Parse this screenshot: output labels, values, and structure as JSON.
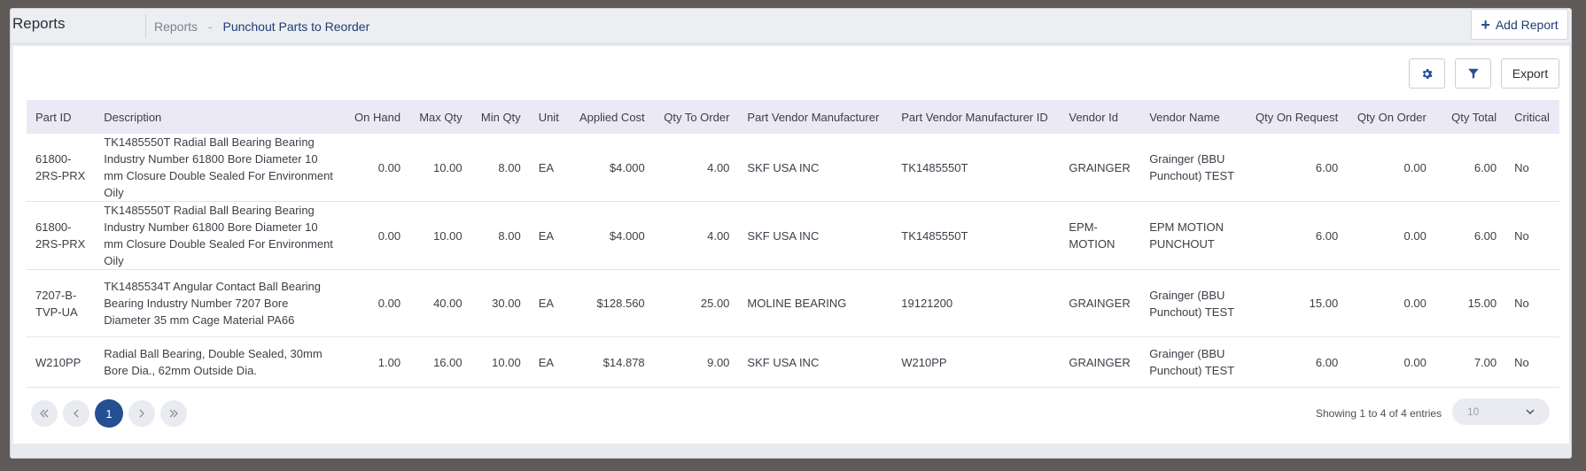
{
  "header": {
    "app_title": "Reports",
    "breadcrumb_root": "Reports",
    "breadcrumb_separator": "-",
    "breadcrumb_current": "Punchout Parts to Reorder",
    "add_report_label": "Add Report",
    "add_report_icon": "plus-icon"
  },
  "toolbar": {
    "settings_icon": "gear-icon",
    "filter_icon": "filter-icon",
    "export_label": "Export"
  },
  "table": {
    "columns": [
      "Part ID",
      "Description",
      "On Hand",
      "Max Qty",
      "Min Qty",
      "Unit",
      "Applied Cost",
      "Qty To Order",
      "Part Vendor Manufacturer",
      "Part Vendor Manufacturer ID",
      "Vendor Id",
      "Vendor Name",
      "Qty On Request",
      "Qty On Order",
      "Qty Total",
      "Critical"
    ],
    "rows": [
      [
        "61800-2RS-PRX",
        "TK1485550T Radial Ball Bearing Bearing Industry Number 61800 Bore Diameter 10 mm Closure Double Sealed For Environment Oily",
        "0.00",
        "10.00",
        "8.00",
        "EA",
        "$4.000",
        "4.00",
        "SKF USA INC",
        "TK1485550T",
        "GRAINGER",
        "Grainger (BBU Punchout) TEST",
        "6.00",
        "0.00",
        "6.00",
        "No"
      ],
      [
        "61800-2RS-PRX",
        "TK1485550T Radial Ball Bearing Bearing Industry Number 61800 Bore Diameter 10 mm Closure Double Sealed For Environment Oily",
        "0.00",
        "10.00",
        "8.00",
        "EA",
        "$4.000",
        "4.00",
        "SKF USA INC",
        "TK1485550T",
        "EPM-MOTION",
        "EPM MOTION PUNCHOUT",
        "6.00",
        "0.00",
        "6.00",
        "No"
      ],
      [
        "7207-B-TVP-UA",
        "TK1485534T Angular Contact Ball Bearing Bearing Industry Number 7207 Bore Diameter 35 mm Cage Material PA66",
        "0.00",
        "40.00",
        "30.00",
        "EA",
        "$128.560",
        "25.00",
        "MOLINE BEARING",
        "19121200",
        "GRAINGER",
        "Grainger (BBU Punchout) TEST",
        "15.00",
        "0.00",
        "15.00",
        "No"
      ],
      [
        "W210PP",
        "Radial Ball Bearing, Double Sealed, 30mm Bore Dia., 62mm Outside Dia.",
        "1.00",
        "16.00",
        "10.00",
        "EA",
        "$14.878",
        "9.00",
        "SKF USA INC",
        "W210PP",
        "GRAINGER",
        "Grainger (BBU Punchout) TEST",
        "6.00",
        "0.00",
        "7.00",
        "No"
      ]
    ]
  },
  "pagination": {
    "first_icon": "double-chevron-left-icon",
    "prev_icon": "chevron-left-icon",
    "current_page": "1",
    "next_icon": "chevron-right-icon",
    "last_icon": "double-chevron-right-icon",
    "showing_text": "Showing 1 to 4 of 4 entries",
    "page_size": "10"
  },
  "colors": {
    "accent": "#264f92",
    "header_row": "#ebe9f6",
    "link": "#1f3d73"
  }
}
